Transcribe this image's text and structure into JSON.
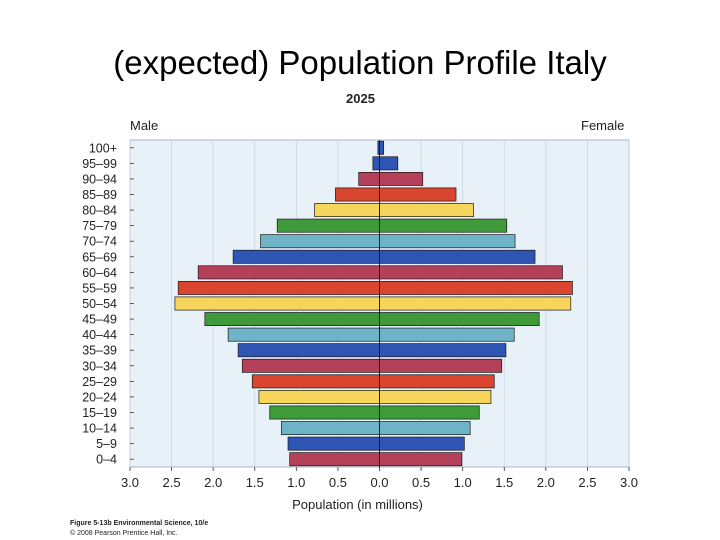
{
  "slide": {
    "title": "(expected) Population Profile Italy"
  },
  "chart_data": {
    "type": "bar",
    "orientation": "horizontal-diverging",
    "title": "2025",
    "xlabel": "Population (in millions)",
    "left_label": "Male",
    "right_label": "Female",
    "xlim": [
      -3.0,
      3.0
    ],
    "xticks": [
      -3.0,
      -2.5,
      -2.0,
      -1.5,
      -1.0,
      -0.5,
      0.0,
      0.5,
      1.0,
      1.5,
      2.0,
      2.5,
      3.0
    ],
    "xtick_labels": [
      "3.0",
      "2.5",
      "2.0",
      "1.5",
      "1.0",
      "0.5",
      "0.0",
      "0.5",
      "1.0",
      "1.5",
      "2.0",
      "2.5",
      "3.0"
    ],
    "categories": [
      "100+",
      "95–99",
      "90–94",
      "85–89",
      "80–84",
      "75–79",
      "70–74",
      "65–69",
      "60–64",
      "55–59",
      "50–54",
      "45–49",
      "40–44",
      "35–39",
      "30–34",
      "25–29",
      "20–24",
      "15–19",
      "10–14",
      "5–9",
      "0–4"
    ],
    "series": [
      {
        "name": "Male",
        "values": [
          0.02,
          0.08,
          0.25,
          0.53,
          0.78,
          1.23,
          1.43,
          1.76,
          2.18,
          2.42,
          2.46,
          2.1,
          1.82,
          1.7,
          1.65,
          1.53,
          1.45,
          1.32,
          1.18,
          1.1,
          1.08
        ]
      },
      {
        "name": "Female",
        "values": [
          0.05,
          0.22,
          0.52,
          0.92,
          1.13,
          1.53,
          1.63,
          1.87,
          2.2,
          2.32,
          2.3,
          1.92,
          1.62,
          1.52,
          1.47,
          1.38,
          1.34,
          1.2,
          1.09,
          1.02,
          0.99
        ]
      }
    ],
    "bar_colors": [
      "#2f55b4",
      "#2f55b4",
      "#b5405a",
      "#d9452e",
      "#f7d55a",
      "#3f9a3a",
      "#6fb3c9",
      "#2f55b4",
      "#b5405a",
      "#d9452e",
      "#f7d55a",
      "#3f9a3a",
      "#6fb3c9",
      "#2f55b4",
      "#b5405a",
      "#d9452e",
      "#f7d55a",
      "#3f9a3a",
      "#6fb3c9",
      "#2f55b4",
      "#b5405a"
    ],
    "plot_background": "#e8f0f8",
    "grid": "vertical"
  },
  "credits": {
    "line1": "Figure 5-13b Environmental Science, 10/e",
    "line2": "© 2008 Pearson Prentice Hall, Inc."
  }
}
